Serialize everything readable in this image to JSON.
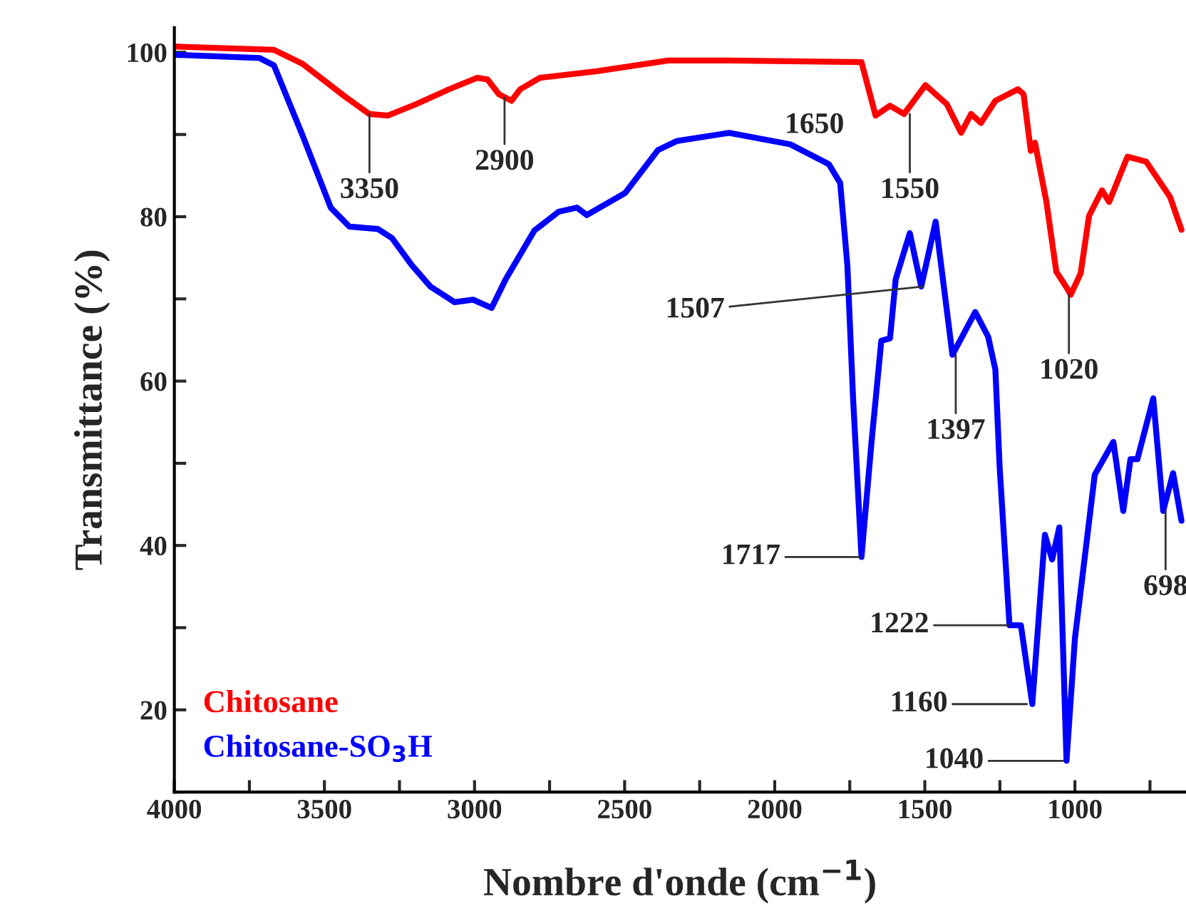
{
  "chart_data": {
    "type": "line",
    "xlabel": "Nombre d'onde (cm$^{−1}$)",
    "ylabel": "Transmittance (%)",
    "xlim": [
      4000,
      630
    ],
    "ylim": [
      10,
      103
    ],
    "xticks": [
      4000,
      {
        "value": 3750,
        "label": null
      },
      3500,
      {
        "value": 3250,
        "label": null
      },
      3000,
      {
        "value": 2750,
        "label": null
      },
      2500,
      {
        "value": 2250,
        "label": null
      },
      2000,
      {
        "value": 1750,
        "label": null
      },
      1500,
      {
        "value": 1250,
        "label": null
      },
      1000,
      {
        "value": 750,
        "label": null
      }
    ],
    "yticks": [
      {
        "value": 10,
        "label": null
      },
      20,
      {
        "value": 30,
        "label": null
      },
      40,
      {
        "value": 50,
        "label": null
      },
      60,
      {
        "value": 70,
        "label": null
      },
      80,
      {
        "value": 90,
        "label": null
      },
      100
    ],
    "legend": "bottom left",
    "series": [
      {
        "name": "Chitosane",
        "color": "#ff0000",
        "x": [
          4000,
          3668,
          3573,
          3431,
          3351,
          3289,
          3194,
          3085,
          2991,
          2957,
          2919,
          2877,
          2848,
          2782,
          2592,
          2355,
          2152,
          1711,
          1664,
          1616,
          1569,
          1498,
          1427,
          1379,
          1346,
          1313,
          1265,
          1190,
          1171,
          1147,
          1133,
          1095,
          1062,
          1028,
          1014,
          981,
          953,
          910,
          886,
          825,
          763,
          683,
          645
        ],
        "values": [
          100.7,
          100.3,
          98.6,
          94.6,
          92.5,
          92.3,
          93.7,
          95.5,
          96.9,
          96.7,
          94.9,
          94.1,
          95.5,
          96.9,
          97.7,
          99.0,
          99.0,
          98.8,
          92.3,
          93.5,
          92.5,
          96.0,
          93.7,
          90.2,
          92.5,
          91.4,
          94.1,
          95.5,
          94.9,
          88.0,
          89.0,
          81.8,
          73.3,
          71.4,
          70.5,
          73.1,
          80.1,
          83.2,
          81.8,
          87.3,
          86.7,
          82.4,
          78.4
        ]
      },
      {
        "name": "Chitosane-SO$_{3}$H",
        "color": "#0000ff",
        "x": [
          4000,
          3716,
          3668,
          3573,
          3479,
          3417,
          3322,
          3275,
          3209,
          3147,
          3066,
          3005,
          2943,
          2896,
          2801,
          2720,
          2659,
          2626,
          2564,
          2498,
          2389,
          2327,
          2152,
          1948,
          1820,
          1782,
          1758,
          1739,
          1711,
          1678,
          1645,
          1616,
          1597,
          1550,
          1512,
          1464,
          1408,
          1332,
          1289,
          1265,
          1251,
          1218,
          1180,
          1142,
          1100,
          1076,
          1052,
          1028,
          1000,
          934,
          872,
          839,
          815,
          792,
          739,
          706,
          673,
          645
        ],
        "values": [
          99.7,
          99.3,
          98.4,
          89.9,
          81.1,
          78.8,
          78.5,
          77.4,
          74.1,
          71.5,
          69.6,
          69.9,
          68.9,
          72.4,
          78.3,
          80.6,
          81.1,
          80.2,
          81.5,
          82.9,
          88.1,
          89.2,
          90.2,
          88.8,
          86.4,
          84.1,
          74.1,
          57.9,
          38.6,
          52.4,
          64.9,
          65.2,
          72.4,
          78.0,
          71.5,
          79.4,
          63.2,
          68.4,
          65.4,
          61.4,
          49.7,
          30.3,
          30.3,
          20.7,
          41.3,
          38.3,
          42.2,
          13.8,
          28.7,
          48.6,
          52.6,
          44.2,
          50.5,
          50.5,
          57.9,
          44.2,
          48.8,
          43.0
        ]
      }
    ],
    "annotations": [
      {
        "text": "3350",
        "x": 3350,
        "y": 92.5
      },
      {
        "text": "2900",
        "x": 2900,
        "y": 94.5
      },
      {
        "text": "1650",
        "x": 1650,
        "y": 92.5
      },
      {
        "text": "1550",
        "x": 1550,
        "y": 92.5
      },
      {
        "text": "1020",
        "x": 1020,
        "y": 70.5
      },
      {
        "text": "1507",
        "x": 1507,
        "y": 71.5
      },
      {
        "text": "1397",
        "x": 1397,
        "y": 63.2
      },
      {
        "text": "1717",
        "x": 1717,
        "y": 38.6
      },
      {
        "text": "1222",
        "x": 1222,
        "y": 30.3
      },
      {
        "text": "1160",
        "x": 1160,
        "y": 20.7
      },
      {
        "text": "1040",
        "x": 1040,
        "y": 13.8
      },
      {
        "text": "698",
        "x": 698,
        "y": 44.2
      }
    ]
  }
}
